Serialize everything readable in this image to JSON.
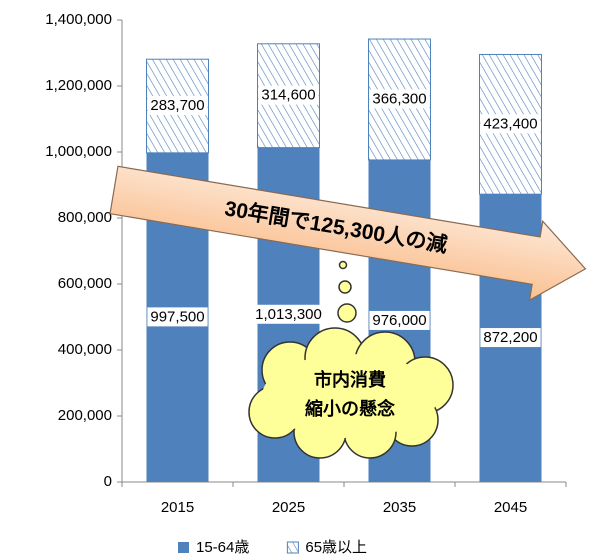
{
  "chart_data": {
    "type": "bar",
    "stacked": true,
    "categories": [
      "2015",
      "2025",
      "2035",
      "2045"
    ],
    "series": [
      {
        "name": "15-64歳",
        "color": "#4f81bd",
        "values": [
          997500,
          1013300,
          976000,
          872200
        ],
        "value_labels": [
          "997,500",
          "1,013,300",
          "976,000",
          "872,200"
        ]
      },
      {
        "name": "65歳以上",
        "color": "#4f81bd",
        "pattern": "hatch",
        "values": [
          283700,
          314600,
          366300,
          423400
        ],
        "value_labels": [
          "283,700",
          "314,600",
          "366,300",
          "423,400"
        ]
      }
    ],
    "ylim": [
      0,
      1400000
    ],
    "yticks": [
      {
        "value": 0,
        "label": "0"
      },
      {
        "value": 200000,
        "label": "200,000"
      },
      {
        "value": 400000,
        "label": "400,000"
      },
      {
        "value": 600000,
        "label": "600,000"
      },
      {
        "value": 800000,
        "label": "800,000"
      },
      {
        "value": 1000000,
        "label": "1,000,000"
      },
      {
        "value": 1200000,
        "label": "1,200,000"
      },
      {
        "value": 1400000,
        "label": "1,400,000"
      }
    ],
    "grid": false,
    "legend": "bottom",
    "annotations": [
      "30年間で125,300人の減",
      "市内消費",
      "縮小の懸念"
    ]
  }
}
